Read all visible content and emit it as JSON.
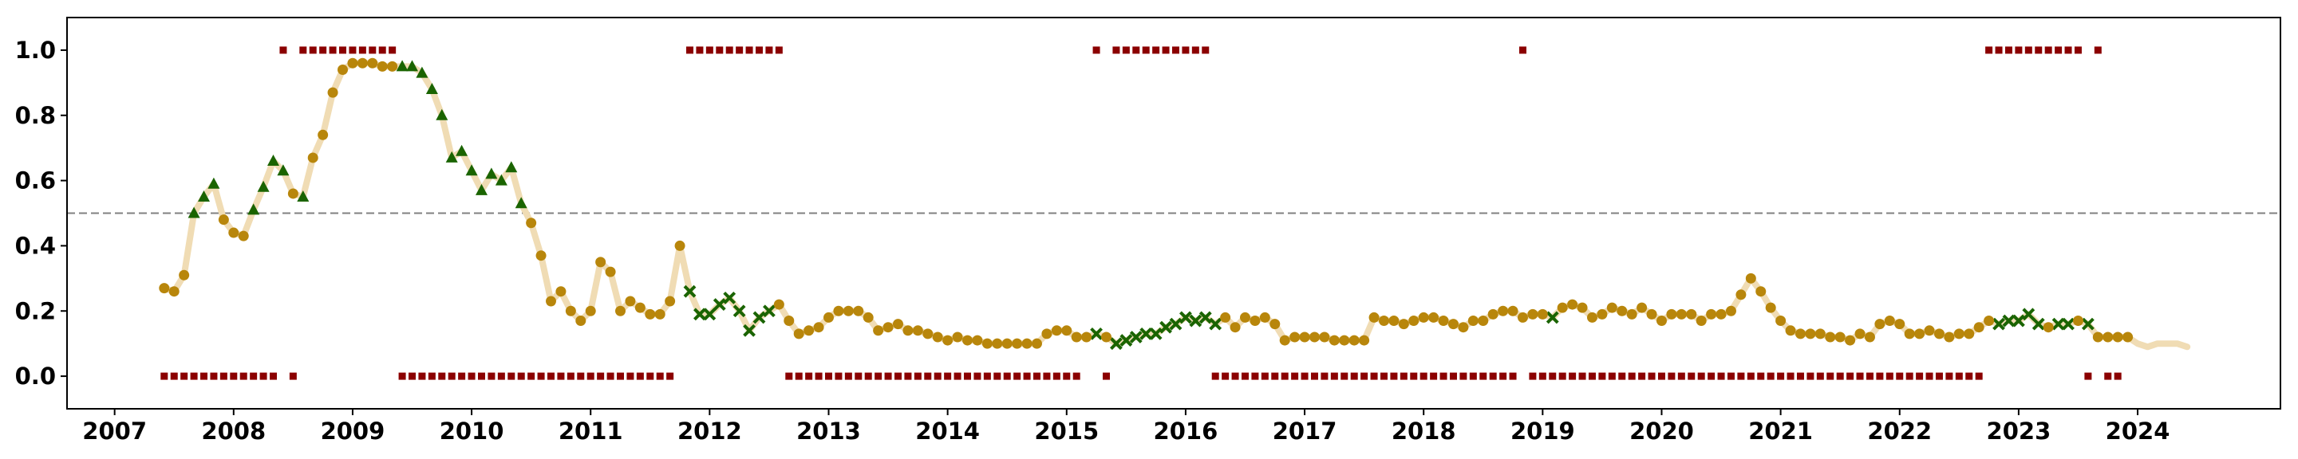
{
  "chart_data": {
    "type": "scatter",
    "title": "",
    "xlabel": "",
    "ylabel": "",
    "xlim": [
      2006.6,
      2025.2
    ],
    "ylim": [
      -0.1,
      1.1
    ],
    "x_ticks": [
      {
        "value": 2007,
        "label": "2007"
      },
      {
        "value": 2008,
        "label": "2008"
      },
      {
        "value": 2009,
        "label": "2009"
      },
      {
        "value": 2010,
        "label": "2010"
      },
      {
        "value": 2011,
        "label": "2011"
      },
      {
        "value": 2012,
        "label": "2012"
      },
      {
        "value": 2013,
        "label": "2013"
      },
      {
        "value": 2014,
        "label": "2014"
      },
      {
        "value": 2015,
        "label": "2015"
      },
      {
        "value": 2016,
        "label": "2016"
      },
      {
        "value": 2017,
        "label": "2017"
      },
      {
        "value": 2018,
        "label": "2018"
      },
      {
        "value": 2019,
        "label": "2019"
      },
      {
        "value": 2020,
        "label": "2020"
      },
      {
        "value": 2021,
        "label": "2021"
      },
      {
        "value": 2022,
        "label": "2022"
      },
      {
        "value": 2023,
        "label": "2023"
      },
      {
        "value": 2024,
        "label": "2024"
      }
    ],
    "y_ticks": [
      {
        "value": 0.0,
        "label": "0.0"
      },
      {
        "value": 0.2,
        "label": "0.2"
      },
      {
        "value": 0.4,
        "label": "0.4"
      },
      {
        "value": 0.6,
        "label": "0.6"
      },
      {
        "value": 0.8,
        "label": "0.8"
      },
      {
        "value": 1.0,
        "label": "1.0"
      }
    ],
    "threshold": 0.5,
    "grid": false,
    "legend": "none",
    "colors": {
      "line": "#f0dcb4",
      "circle": "#b8860b",
      "triangle": "#1a6400",
      "cross": "#1a6400",
      "square": "#8b0000",
      "threshold": "#808080"
    },
    "start": [
      2007,
      6
    ],
    "values": [
      0.27,
      0.26,
      0.31,
      0.5,
      0.55,
      0.59,
      0.48,
      0.44,
      0.43,
      0.51,
      0.58,
      0.66,
      0.63,
      0.56,
      0.55,
      0.67,
      0.74,
      0.87,
      0.94,
      0.96,
      0.96,
      0.96,
      0.95,
      0.95,
      0.95,
      0.95,
      0.93,
      0.88,
      0.8,
      0.67,
      0.69,
      0.63,
      0.57,
      0.62,
      0.6,
      0.64,
      0.53,
      0.47,
      0.37,
      0.23,
      0.26,
      0.2,
      0.17,
      0.2,
      0.35,
      0.32,
      0.2,
      0.23,
      0.21,
      0.19,
      0.19,
      0.23,
      0.4,
      0.26,
      0.19,
      0.19,
      0.22,
      0.24,
      0.2,
      0.14,
      0.18,
      0.2,
      0.22,
      0.17,
      0.13,
      0.14,
      0.15,
      0.18,
      0.2,
      0.2,
      0.2,
      0.18,
      0.14,
      0.15,
      0.16,
      0.14,
      0.14,
      0.13,
      0.12,
      0.11,
      0.12,
      0.11,
      0.11,
      0.1,
      0.1,
      0.1,
      0.1,
      0.1,
      0.1,
      0.13,
      0.14,
      0.14,
      0.12,
      0.12,
      0.13,
      0.12,
      0.1,
      0.11,
      0.12,
      0.13,
      0.13,
      0.15,
      0.16,
      0.18,
      0.17,
      0.18,
      0.16,
      0.18,
      0.15,
      0.18,
      0.17,
      0.18,
      0.16,
      0.11,
      0.12,
      0.12,
      0.12,
      0.12,
      0.11,
      0.11,
      0.11,
      0.11,
      0.18,
      0.17,
      0.17,
      0.16,
      0.17,
      0.18,
      0.18,
      0.17,
      0.16,
      0.15,
      0.17,
      0.17,
      0.19,
      0.2,
      0.2,
      0.18,
      0.19,
      0.19,
      0.18,
      0.21,
      0.22,
      0.21,
      0.18,
      0.19,
      0.21,
      0.2,
      0.19,
      0.21,
      0.19,
      0.17,
      0.19,
      0.19,
      0.19,
      0.17,
      0.19,
      0.19,
      0.2,
      0.25,
      0.3,
      0.26,
      0.21,
      0.17,
      0.14,
      0.13,
      0.13,
      0.13,
      0.12,
      0.12,
      0.11,
      0.13,
      0.12,
      0.16,
      0.17,
      0.16,
      0.13,
      0.13,
      0.14,
      0.13,
      0.12,
      0.13,
      0.13,
      0.15,
      0.17,
      0.16,
      0.17,
      0.17,
      0.19,
      0.16,
      0.15,
      0.16,
      0.16,
      0.17,
      0.16,
      0.12,
      0.12,
      0.12,
      0.12,
      0.1,
      0.09,
      0.1,
      0.1,
      0.1,
      0.09
    ],
    "series": [
      {
        "marker": "triangle",
        "ranges": [
          [
            3,
            5
          ],
          [
            9,
            12
          ],
          [
            14,
            14
          ],
          [
            24,
            36
          ]
        ]
      },
      {
        "marker": "cross",
        "ranges": [
          [
            53,
            61
          ],
          [
            94,
            94
          ],
          [
            96,
            106
          ],
          [
            140,
            140
          ],
          [
            185,
            189
          ],
          [
            191,
            192
          ],
          [
            194,
            194
          ]
        ]
      },
      {
        "marker": "circle",
        "ranges": [
          [
            0,
            2
          ],
          [
            6,
            8
          ],
          [
            13,
            13
          ],
          [
            15,
            23
          ],
          [
            37,
            52
          ],
          [
            62,
            93
          ],
          [
            95,
            95
          ],
          [
            107,
            139
          ],
          [
            141,
            184
          ],
          [
            190,
            190
          ],
          [
            193,
            193
          ],
          [
            195,
            198
          ]
        ]
      }
    ],
    "regime_squares": {
      "value_1": [
        [
          12,
          12
        ],
        [
          14,
          23
        ],
        [
          53,
          62
        ],
        [
          94,
          94
        ],
        [
          96,
          105
        ],
        [
          137,
          137
        ],
        [
          184,
          193
        ],
        [
          195,
          195
        ]
      ],
      "value_0": [
        [
          0,
          11
        ],
        [
          13,
          13
        ],
        [
          24,
          51
        ],
        [
          63,
          92
        ],
        [
          95,
          95
        ],
        [
          106,
          136
        ],
        [
          138,
          183
        ],
        [
          194,
          194
        ],
        [
          196,
          197
        ]
      ]
    }
  }
}
